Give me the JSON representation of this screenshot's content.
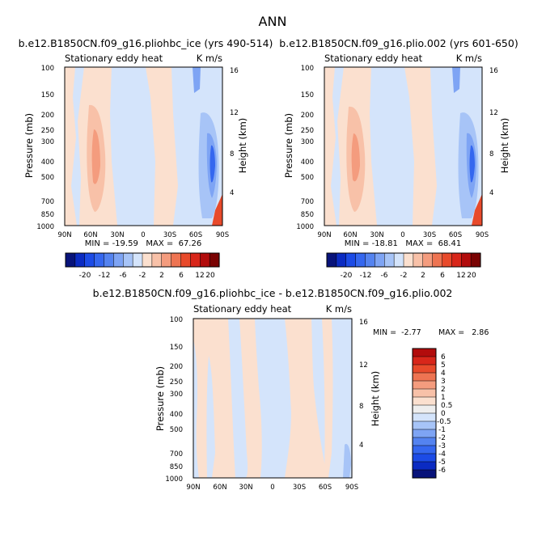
{
  "figure": {
    "main_title": "ANN"
  },
  "palettes": {
    "top": [
      "#08137a",
      "#0b2bc2",
      "#1c4be6",
      "#3567ef",
      "#5483f0",
      "#7ea4f4",
      "#a7c4f7",
      "#d4e4fb",
      "#fbe0cf",
      "#f8c1a8",
      "#f49c7e",
      "#ee7452",
      "#e84a2b",
      "#d8261a",
      "#b20c0c",
      "#7a0303"
    ],
    "diff": [
      "#08137a",
      "#0b2bc2",
      "#1c4be6",
      "#3567ef",
      "#5483f0",
      "#7ea4f4",
      "#a7c4f7",
      "#d4e4fb",
      "#eeeeee",
      "#fbe0cf",
      "#f8c1a8",
      "#f49c7e",
      "#ee7452",
      "#e84a2b",
      "#d8261a",
      "#b20c0c"
    ]
  },
  "chart_data": [
    {
      "type": "heatmap",
      "title": "b.e12.B1850CN.f09_g16.pliohbc_ice (yrs 490-514)",
      "left_label": "Stationary eddy heat",
      "right_label": "K m/s",
      "xlabel": "",
      "ylabel": "Pressure (mb)",
      "ylabel_right": "Height (km)",
      "x_ticks": [
        "90N",
        "60N",
        "30N",
        "0",
        "30S",
        "60S",
        "90S"
      ],
      "y_ticks": [
        "100",
        "150",
        "200",
        "250",
        "300",
        "400",
        "500",
        "700",
        "850",
        "1000"
      ],
      "right_ticks": [
        "16",
        "12",
        "8",
        "4"
      ],
      "stats": "MIN = -19.59   MAX =  67.26",
      "colorbar_labels": [
        "-20",
        "-12",
        "-6",
        "-2",
        "2",
        "6",
        "12",
        "20"
      ]
    },
    {
      "type": "heatmap",
      "title": "b.e12.B1850CN.f09_g16.plio.002 (yrs 601-650)",
      "left_label": "Stationary eddy heat",
      "right_label": "K m/s",
      "xlabel": "",
      "ylabel": "Pressure (mb)",
      "ylabel_right": "Height (km)",
      "x_ticks": [
        "90N",
        "60N",
        "30N",
        "0",
        "30S",
        "60S",
        "90S"
      ],
      "y_ticks": [
        "100",
        "150",
        "200",
        "250",
        "300",
        "400",
        "500",
        "700",
        "850",
        "1000"
      ],
      "right_ticks": [
        "16",
        "12",
        "8",
        "4"
      ],
      "stats": "MIN = -18.81   MAX =  68.41",
      "colorbar_labels": [
        "-20",
        "-12",
        "-6",
        "-2",
        "2",
        "6",
        "12",
        "20"
      ]
    },
    {
      "type": "heatmap",
      "title": "b.e12.B1850CN.f09_g16.pliohbc_ice - b.e12.B1850CN.f09_g16.plio.002",
      "left_label": "Stationary eddy heat",
      "right_label": "K m/s",
      "xlabel": "",
      "ylabel": "Pressure (mb)",
      "ylabel_right": "Height (km)",
      "x_ticks": [
        "90N",
        "60N",
        "30N",
        "0",
        "30S",
        "60S",
        "90S"
      ],
      "y_ticks": [
        "100",
        "150",
        "200",
        "250",
        "300",
        "400",
        "500",
        "700",
        "850",
        "1000"
      ],
      "right_ticks": [
        "16",
        "12",
        "8",
        "4"
      ],
      "stats_min": "MIN =  -2.77",
      "stats_max": "MAX =   2.86",
      "colorbar_labels": [
        "6",
        "5",
        "4",
        "3",
        "2",
        "1",
        "0.5",
        "0",
        "-0.5",
        "-1",
        "-2",
        "-3",
        "-4",
        "-5",
        "-6"
      ]
    }
  ]
}
